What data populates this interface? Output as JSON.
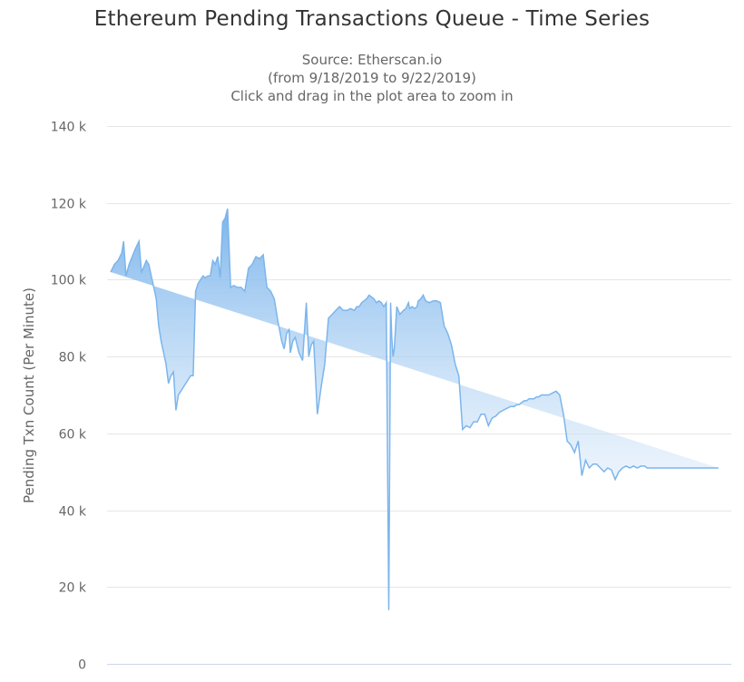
{
  "chart": {
    "title": "Ethereum Pending Transactions Queue - Time Series",
    "subtitle_lines": [
      "Source: Etherscan.io",
      "(from 9/18/2019 to 9/22/2019)",
      "Click and drag in the plot area to zoom in"
    ],
    "ylabel": "Pending Txn Count (Per Minute)",
    "colors": {
      "line": "#7cb5ec",
      "fill_top": "#7cb5ec",
      "fill_bottom": "#ffffff",
      "grid": "#e6e6e6",
      "axis": "#ccd6eb"
    }
  },
  "chart_data": {
    "type": "area",
    "title": "Ethereum Pending Transactions Queue - Time Series",
    "subtitle": "Source: Etherscan.io (from 9/18/2019 to 9/22/2019) Click and drag in the plot area to zoom in",
    "xlabel": "",
    "ylabel": "Pending Txn Count (Per Minute)",
    "ylim": [
      0,
      140000
    ],
    "yticks": [
      "0",
      "20 k",
      "40 k",
      "60 k",
      "80 k",
      "100 k",
      "120 k",
      "140 k"
    ],
    "xrange": [
      "9/18/2019",
      "9/22/2019"
    ],
    "grid": true,
    "legend": "none",
    "series": [
      {
        "name": "Pending Txn Count",
        "x_frac": [
          0.0,
          0.006,
          0.012,
          0.018,
          0.021,
          0.025,
          0.03,
          0.035,
          0.04,
          0.046,
          0.05,
          0.053,
          0.058,
          0.062,
          0.066,
          0.07,
          0.074,
          0.078,
          0.082,
          0.086,
          0.09,
          0.094,
          0.098,
          0.102,
          0.106,
          0.11,
          0.114,
          0.118,
          0.122,
          0.126,
          0.13,
          0.134,
          0.138,
          0.142,
          0.146,
          0.15,
          0.154,
          0.158,
          0.162,
          0.166,
          0.17,
          0.174,
          0.178,
          0.182,
          0.186,
          0.19,
          0.195,
          0.2,
          0.206,
          0.212,
          0.218,
          0.224,
          0.23,
          0.236,
          0.242,
          0.248,
          0.254,
          0.26,
          0.266,
          0.272,
          0.278,
          0.282,
          0.286,
          0.29,
          0.292,
          0.296,
          0.3,
          0.306,
          0.312,
          0.318,
          0.322,
          0.326,
          0.33,
          0.336,
          0.342,
          0.348,
          0.354,
          0.36,
          0.366,
          0.372,
          0.378,
          0.384,
          0.39,
          0.396,
          0.4,
          0.404,
          0.408,
          0.412,
          0.416,
          0.42,
          0.424,
          0.428,
          0.432,
          0.436,
          0.44,
          0.444,
          0.448,
          0.452,
          0.455,
          0.457,
          0.459,
          0.461,
          0.465,
          0.47,
          0.476,
          0.48,
          0.484,
          0.486,
          0.49,
          0.494,
          0.498,
          0.5,
          0.504,
          0.508,
          0.512,
          0.518,
          0.524,
          0.53,
          0.536,
          0.542,
          0.548,
          0.554,
          0.56,
          0.566,
          0.572,
          0.578,
          0.584,
          0.59,
          0.596,
          0.602,
          0.608,
          0.614,
          0.62,
          0.626,
          0.632,
          0.638,
          0.644,
          0.65,
          0.656,
          0.66,
          0.664,
          0.668,
          0.672,
          0.676,
          0.68,
          0.684,
          0.688,
          0.692,
          0.696,
          0.7,
          0.706,
          0.712,
          0.718,
          0.724,
          0.73,
          0.736,
          0.742,
          0.748,
          0.754,
          0.76,
          0.766,
          0.772,
          0.778,
          0.784,
          0.79,
          0.796,
          0.802,
          0.808,
          0.814,
          0.82,
          0.826,
          0.832,
          0.838,
          0.844,
          0.85,
          0.856,
          0.862,
          0.868,
          0.872,
          0.876,
          0.88,
          0.884,
          0.888,
          0.892,
          0.896,
          0.9,
          0.904,
          0.908,
          0.912,
          0.916,
          0.92,
          0.924,
          0.928,
          0.932,
          0.936,
          0.94,
          0.944,
          0.948,
          0.952,
          0.956,
          0.96,
          0.964,
          0.968,
          0.972,
          0.976,
          0.98,
          0.984,
          0.988,
          0.992,
          0.996,
          1.0
        ],
        "values": [
          102000,
          104000,
          105000,
          107000,
          110000,
          101000,
          104000,
          106000,
          108000,
          110000,
          102000,
          103000,
          105000,
          104000,
          101000,
          98000,
          95000,
          88000,
          84000,
          81000,
          78000,
          73000,
          75000,
          76000,
          66000,
          70000,
          71000,
          72000,
          73000,
          74000,
          75000,
          75000,
          97000,
          99000,
          100000,
          101000,
          100500,
          101000,
          101000,
          105000,
          104000,
          106000,
          100500,
          115000,
          116000,
          118500,
          98000,
          98500,
          98000,
          98000,
          97000,
          103000,
          104000,
          106000,
          105500,
          106500,
          98000,
          97000,
          95000,
          89000,
          84000,
          82000,
          86000,
          87000,
          81000,
          84000,
          85000,
          81000,
          79000,
          94000,
          80000,
          83000,
          84000,
          65000,
          72000,
          78000,
          90000,
          91000,
          92000,
          93000,
          92000,
          92000,
          92500,
          92000,
          93000,
          93000,
          94000,
          94500,
          95000,
          96000,
          95500,
          95000,
          94000,
          94500,
          94000,
          93000,
          94000,
          14000,
          94000,
          85000,
          80000,
          82000,
          93000,
          91000,
          92000,
          92500,
          94000,
          92500,
          93000,
          92500,
          93000,
          94500,
          95000,
          96000,
          94500,
          94000,
          94500,
          94500,
          94000,
          88000,
          86000,
          83000,
          78000,
          75000,
          61000,
          62000,
          61500,
          63000,
          63000,
          65000,
          65000,
          62000,
          64000,
          64500,
          65500,
          66000,
          66500,
          67000,
          67000,
          67500,
          67500,
          68000,
          68500,
          68500,
          69000,
          69000,
          69000,
          69500,
          69500,
          70000,
          70000,
          70000,
          70500,
          71000,
          70000,
          65000,
          58000,
          57000,
          55000,
          58000,
          49000,
          53000,
          51000,
          52000,
          52000,
          51000,
          50000,
          51000,
          50500,
          48000,
          50000,
          51000,
          51500,
          51000,
          51500,
          51000,
          51500,
          51500,
          51000,
          51000,
          51000,
          51000,
          51000,
          51000,
          51000,
          51000,
          51000,
          51000,
          51000,
          51000,
          51000,
          51000,
          51000,
          51000,
          51000,
          51000,
          51000,
          51000,
          51000,
          51000,
          51000,
          51000,
          51000,
          51000,
          51000,
          51000,
          51000,
          51000
        ]
      }
    ]
  }
}
